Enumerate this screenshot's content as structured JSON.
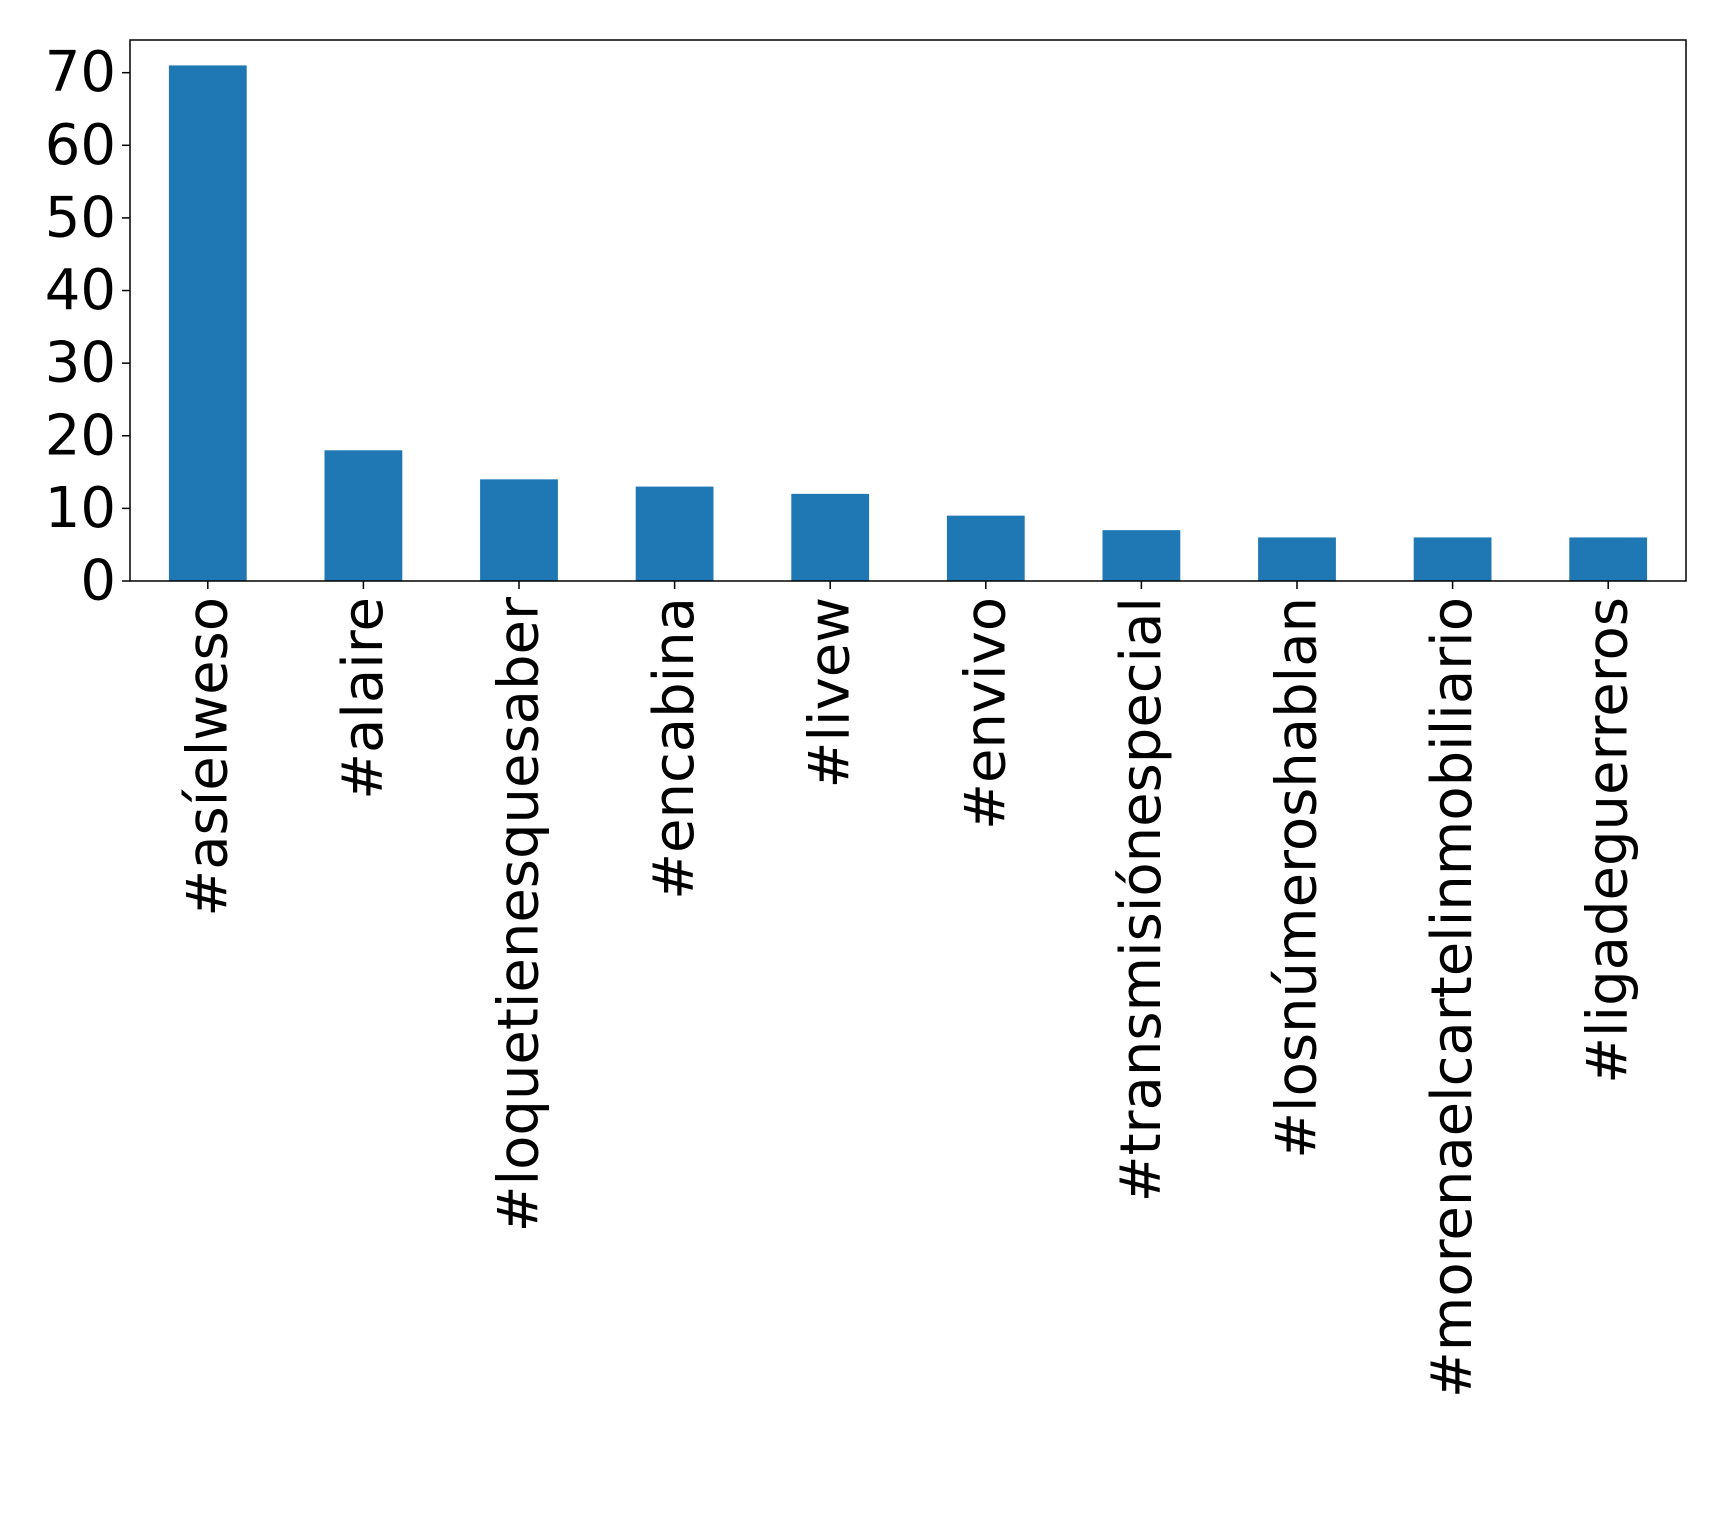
{
  "chart_data": {
    "type": "bar",
    "title": "",
    "xlabel": "",
    "ylabel": "",
    "categories": [
      "#asíelweso",
      "#alaire",
      "#loquetienesquesaber",
      "#encabina",
      "#livew",
      "#envivo",
      "#transmisiónespecial",
      "#losnúmeroshablan",
      "#morenaelcartelinmobiliario",
      "#ligadeguerreros"
    ],
    "values": [
      71,
      18,
      14,
      13,
      12,
      9,
      7,
      6,
      6,
      6
    ],
    "ylim": [
      0,
      74.5
    ],
    "yticks": [
      0,
      10,
      20,
      30,
      40,
      50,
      60,
      70
    ],
    "ytick_labels": [
      "0",
      "10",
      "20",
      "30",
      "40",
      "50",
      "60",
      "70"
    ],
    "bar_color": "#1f77b4",
    "grid": false,
    "legend": "none",
    "xtick_rotation": "vertical"
  }
}
